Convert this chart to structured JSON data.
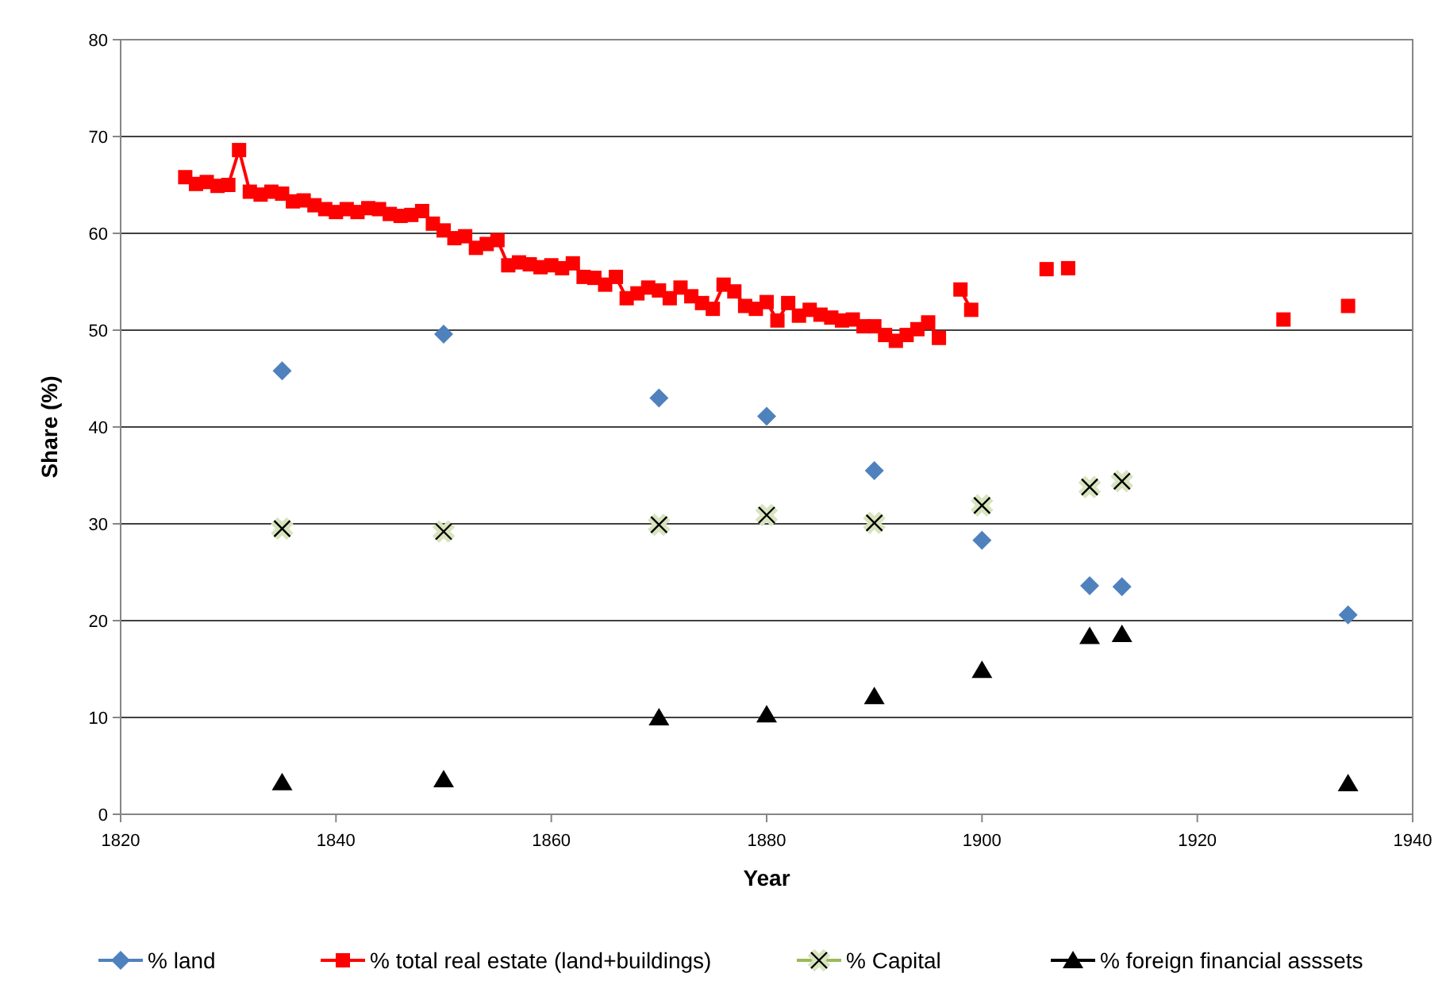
{
  "chart_data": {
    "type": "scatter",
    "xlabel": "Year",
    "ylabel": "Share (%)",
    "xlim": [
      1820,
      1940
    ],
    "xticks": [
      1820,
      1840,
      1860,
      1880,
      1900,
      1920,
      1940
    ],
    "ylim": [
      0,
      80
    ],
    "yticks": [
      0,
      10,
      20,
      30,
      40,
      50,
      60,
      70,
      80
    ],
    "grid": "y",
    "legend": "bottom",
    "series": [
      {
        "name": "% land",
        "marker": "diamond",
        "color": "#4f81bd",
        "x": [
          1835,
          1850,
          1870,
          1880,
          1890,
          1900,
          1910,
          1913,
          1934
        ],
        "values": [
          45.8,
          49.6,
          43.0,
          41.1,
          35.5,
          28.3,
          23.6,
          23.5,
          20.6
        ]
      },
      {
        "name": "% total real estate (land+buildings)",
        "type": "line",
        "marker": "square",
        "color": "#ff0000",
        "x": [
          1826,
          1827,
          1828,
          1829,
          1830,
          1831,
          1832,
          1833,
          1834,
          1835,
          1836,
          1837,
          1838,
          1839,
          1840,
          1841,
          1842,
          1843,
          1844,
          1845,
          1846,
          1847,
          1848,
          1849,
          1850,
          1851,
          1852,
          1853,
          1854,
          1855,
          1856,
          1857,
          1858,
          1859,
          1860,
          1861,
          1862,
          1863,
          1864,
          1865,
          1866,
          1867,
          1868,
          1869,
          1870,
          1871,
          1872,
          1873,
          1874,
          1875,
          1876,
          1877,
          1878,
          1879,
          1880,
          1881,
          1882,
          1883,
          1884,
          1885,
          1886,
          1887,
          1888,
          1889,
          1890,
          1891,
          1892,
          1893,
          1894,
          1895,
          1896,
          1897,
          1898,
          1899,
          1900,
          1906,
          1907,
          1908,
          1909,
          1928,
          1929,
          1934
        ],
        "values": [
          65.8,
          65.1,
          65.3,
          64.9,
          65.0,
          68.6,
          64.3,
          64.0,
          64.3,
          64.1,
          63.3,
          63.4,
          62.9,
          62.5,
          62.2,
          62.5,
          62.2,
          62.6,
          62.5,
          62.0,
          61.8,
          61.9,
          62.3,
          61.0,
          60.3,
          59.5,
          59.7,
          58.5,
          58.9,
          59.3,
          56.7,
          57.0,
          56.8,
          56.5,
          56.7,
          56.4,
          56.9,
          55.5,
          55.4,
          54.7,
          55.5,
          53.3,
          53.8,
          54.4,
          54.1,
          53.3,
          54.4,
          53.5,
          52.8,
          52.2,
          54.7,
          54.0,
          52.5,
          52.2,
          52.9,
          51.0,
          52.8,
          51.5,
          52.1,
          51.6,
          51.3,
          51.0,
          51.1,
          50.4,
          50.4,
          49.5,
          48.9,
          49.5,
          50.1,
          50.8,
          49.2,
          null,
          54.2,
          52.1,
          null,
          56.3,
          null,
          56.4,
          null,
          51.1,
          null,
          52.5
        ]
      },
      {
        "name": "% Capital",
        "marker": "cross",
        "color": "#d7e4bd",
        "x": [
          1835,
          1850,
          1870,
          1880,
          1890,
          1900,
          1910,
          1913
        ],
        "values": [
          29.5,
          29.2,
          29.9,
          30.9,
          30.1,
          31.9,
          33.8,
          34.4
        ]
      },
      {
        "name": "% foreign financial asssets",
        "marker": "triangle",
        "color": "#000000",
        "x": [
          1835,
          1850,
          1870,
          1880,
          1890,
          1900,
          1910,
          1913,
          1934
        ],
        "values": [
          3.3,
          3.6,
          10.0,
          10.3,
          12.2,
          14.9,
          18.4,
          18.6,
          3.2
        ]
      }
    ]
  }
}
